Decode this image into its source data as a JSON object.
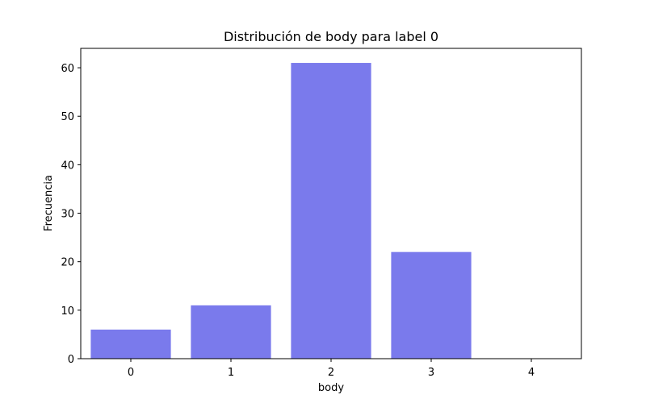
{
  "chart_data": {
    "type": "bar",
    "title": "Distribución de body para label 0",
    "xlabel": "body",
    "ylabel": "Frecuencia",
    "categories": [
      "0",
      "1",
      "2",
      "3",
      "4"
    ],
    "values": [
      6,
      11,
      61,
      22,
      0
    ],
    "ylim": [
      0,
      64
    ],
    "yticks": [
      0,
      10,
      20,
      30,
      40,
      50,
      60
    ],
    "grid": false,
    "bar_color": "#7a7aec"
  }
}
